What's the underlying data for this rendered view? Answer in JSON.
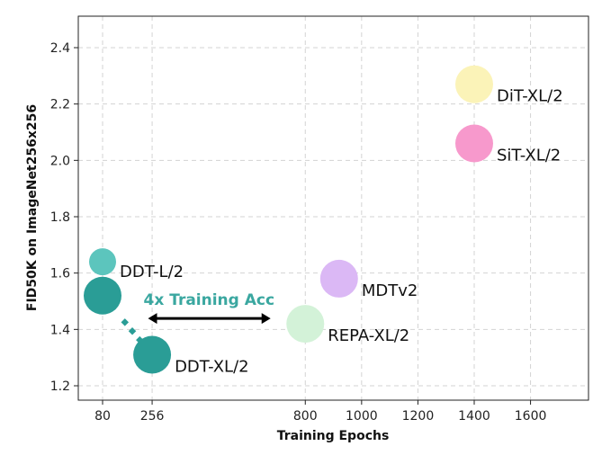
{
  "chart_data": {
    "type": "scatter",
    "title": "",
    "xlabel": "Training Epochs",
    "ylabel": "FID50K on ImageNet256x256",
    "xlim": [
      0,
      1800
    ],
    "ylim": [
      1.15,
      2.5
    ],
    "xticks": [
      80,
      256,
      800,
      1000,
      1200,
      1400,
      1600
    ],
    "xtick_labels": [
      "80",
      "256",
      "800",
      "1000",
      "1200",
      "1400",
      "1600"
    ],
    "yticks": [
      1.2,
      1.4,
      1.6,
      1.8,
      2.0,
      2.2,
      2.4
    ],
    "ytick_labels": [
      "1.2",
      "1.4",
      "1.6",
      "1.8",
      "2.0",
      "2.2",
      "2.4"
    ],
    "grid": true,
    "points": [
      {
        "name": "DDT-L/2",
        "x": 80,
        "y": 1.64,
        "color": "#5cc5bd",
        "size": "small"
      },
      {
        "name": "",
        "x": 80,
        "y": 1.52,
        "color": "#2a9d96",
        "size": "large"
      },
      {
        "name": "DDT-XL/2",
        "x": 256,
        "y": 1.31,
        "color": "#2a9d96",
        "size": "large"
      },
      {
        "name": "REPA-XL/2",
        "x": 800,
        "y": 1.42,
        "color": "#d3f2d8",
        "size": "large"
      },
      {
        "name": "MDTv2",
        "x": 920,
        "y": 1.58,
        "color": "#dbb8f5",
        "size": "large"
      },
      {
        "name": "DiT-XL/2",
        "x": 1400,
        "y": 2.27,
        "color": "#fbf3b8",
        "size": "large"
      },
      {
        "name": "SiT-XL/2",
        "x": 1400,
        "y": 2.06,
        "color": "#f799cc",
        "size": "large"
      }
    ],
    "annotations": [
      {
        "text": "4x Training Acc",
        "color": "#3aa7a0",
        "arrow_from_x": 120,
        "arrow_to_x": 680,
        "arrow_y": 1.42
      }
    ]
  }
}
